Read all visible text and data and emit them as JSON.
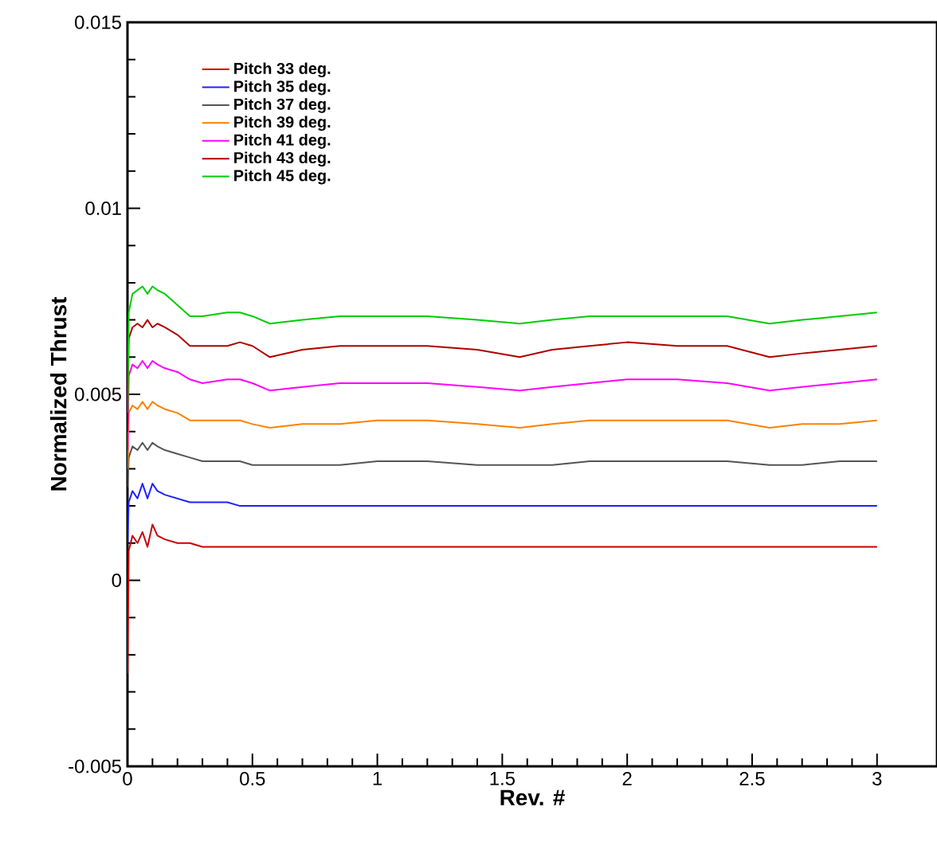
{
  "chart_data": {
    "type": "line",
    "xlabel": "Rev. #",
    "ylabel": "Normalized Thrust",
    "xlim": [
      0,
      3.24
    ],
    "ylim": [
      -0.005,
      0.015
    ],
    "xticks": [
      0,
      0.5,
      1,
      1.5,
      2,
      2.5,
      3
    ],
    "yticks": [
      -0.005,
      0,
      0.005,
      0.01,
      0.015
    ],
    "legend": "top left",
    "marker": "none",
    "line_style": "solid",
    "x": [
      0,
      0.005,
      0.02,
      0.04,
      0.06,
      0.08,
      0.1,
      0.12,
      0.15,
      0.2,
      0.25,
      0.3,
      0.4,
      0.45,
      0.5,
      0.57,
      0.7,
      0.85,
      1.0,
      1.2,
      1.4,
      1.57,
      1.7,
      1.85,
      2.0,
      2.2,
      2.4,
      2.57,
      2.7,
      2.85,
      3.0
    ],
    "series": [
      {
        "name": "Pitch 33 deg.",
        "color": "#cc0000",
        "values": [
          -0.0025,
          0.0008,
          0.0012,
          0.001,
          0.0013,
          0.0009,
          0.0015,
          0.0012,
          0.0011,
          0.001,
          0.001,
          0.0009,
          0.0009,
          0.0009,
          0.0009,
          0.0009,
          0.0009,
          0.0009,
          0.0009,
          0.0009,
          0.0009,
          0.0009,
          0.0009,
          0.0009,
          0.0009,
          0.0009,
          0.0009,
          0.0009,
          0.0009,
          0.0009,
          0.0009
        ]
      },
      {
        "name": "Pitch 35 deg.",
        "color": "#2020ff",
        "values": [
          0.001,
          0.0021,
          0.0024,
          0.0022,
          0.0026,
          0.0022,
          0.0026,
          0.0024,
          0.0023,
          0.0022,
          0.0021,
          0.0021,
          0.0021,
          0.002,
          0.002,
          0.002,
          0.002,
          0.002,
          0.002,
          0.002,
          0.002,
          0.002,
          0.002,
          0.002,
          0.002,
          0.002,
          0.002,
          0.002,
          0.002,
          0.002,
          0.002
        ]
      },
      {
        "name": "Pitch 37 deg.",
        "color": "#555555",
        "values": [
          0.0025,
          0.0033,
          0.0036,
          0.0035,
          0.0037,
          0.0035,
          0.0037,
          0.0036,
          0.0035,
          0.0034,
          0.0033,
          0.0032,
          0.0032,
          0.0032,
          0.0031,
          0.0031,
          0.0031,
          0.0031,
          0.0032,
          0.0032,
          0.0031,
          0.0031,
          0.0031,
          0.0032,
          0.0032,
          0.0032,
          0.0032,
          0.0031,
          0.0031,
          0.0032,
          0.0032
        ]
      },
      {
        "name": "Pitch 39 deg.",
        "color": "#ff8000",
        "values": [
          0.003,
          0.0045,
          0.0047,
          0.0046,
          0.0048,
          0.0046,
          0.0048,
          0.0047,
          0.0046,
          0.0045,
          0.0043,
          0.0043,
          0.0043,
          0.0043,
          0.0042,
          0.0041,
          0.0042,
          0.0042,
          0.0043,
          0.0043,
          0.0042,
          0.0041,
          0.0042,
          0.0043,
          0.0043,
          0.0043,
          0.0043,
          0.0041,
          0.0042,
          0.0042,
          0.0043
        ]
      },
      {
        "name": "Pitch 41 deg.",
        "color": "#ff00ff",
        "values": [
          0.0035,
          0.0055,
          0.0058,
          0.0057,
          0.0059,
          0.0057,
          0.0059,
          0.0058,
          0.0057,
          0.0056,
          0.0054,
          0.0053,
          0.0054,
          0.0054,
          0.0053,
          0.0051,
          0.0052,
          0.0053,
          0.0053,
          0.0053,
          0.0052,
          0.0051,
          0.0052,
          0.0053,
          0.0054,
          0.0054,
          0.0053,
          0.0051,
          0.0052,
          0.0053,
          0.0054
        ]
      },
      {
        "name": "Pitch 43 deg.",
        "color": "#b00000",
        "values": [
          0.004,
          0.0065,
          0.0068,
          0.0069,
          0.0068,
          0.007,
          0.0068,
          0.0069,
          0.0068,
          0.0066,
          0.0063,
          0.0063,
          0.0063,
          0.0064,
          0.0063,
          0.006,
          0.0062,
          0.0063,
          0.0063,
          0.0063,
          0.0062,
          0.006,
          0.0062,
          0.0063,
          0.0064,
          0.0063,
          0.0063,
          0.006,
          0.0061,
          0.0062,
          0.0063
        ]
      },
      {
        "name": "Pitch 45 deg.",
        "color": "#00cc00",
        "values": [
          0.0045,
          0.0072,
          0.0077,
          0.0078,
          0.0079,
          0.0077,
          0.0079,
          0.0078,
          0.0077,
          0.0074,
          0.0071,
          0.0071,
          0.0072,
          0.0072,
          0.0071,
          0.0069,
          0.007,
          0.0071,
          0.0071,
          0.0071,
          0.007,
          0.0069,
          0.007,
          0.0071,
          0.0071,
          0.0071,
          0.0071,
          0.0069,
          0.007,
          0.0071,
          0.0072
        ]
      }
    ]
  }
}
